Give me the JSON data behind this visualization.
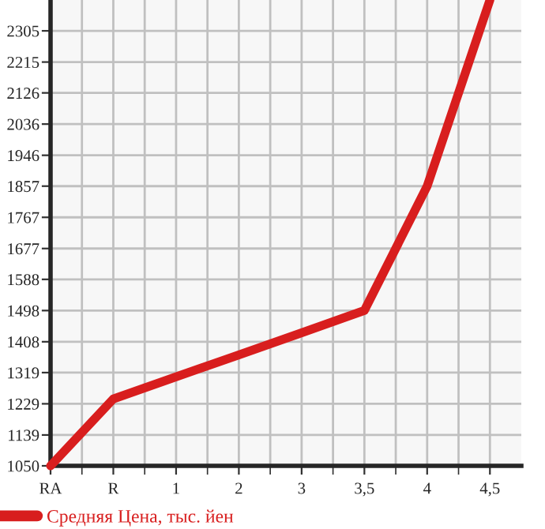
{
  "chart_data": {
    "type": "line",
    "categories": [
      "RA",
      "R",
      "1",
      "2",
      "3",
      "3,5",
      "4",
      "4,5"
    ],
    "series": [
      {
        "name": "Средняя Цена, тыс. йен",
        "color": "#d81e1e",
        "values": [
          1050,
          1243,
          1307,
          1370,
          1434,
          1498,
          1857,
          2394
        ]
      }
    ],
    "ylim": [
      1050,
      2394
    ],
    "yticks": [
      1050,
      1139,
      1229,
      1319,
      1408,
      1498,
      1588,
      1677,
      1767,
      1857,
      1946,
      2036,
      2126,
      2215,
      2305
    ],
    "grid": true,
    "legend": "bottom left",
    "marker": "none",
    "line_style": "solid"
  }
}
